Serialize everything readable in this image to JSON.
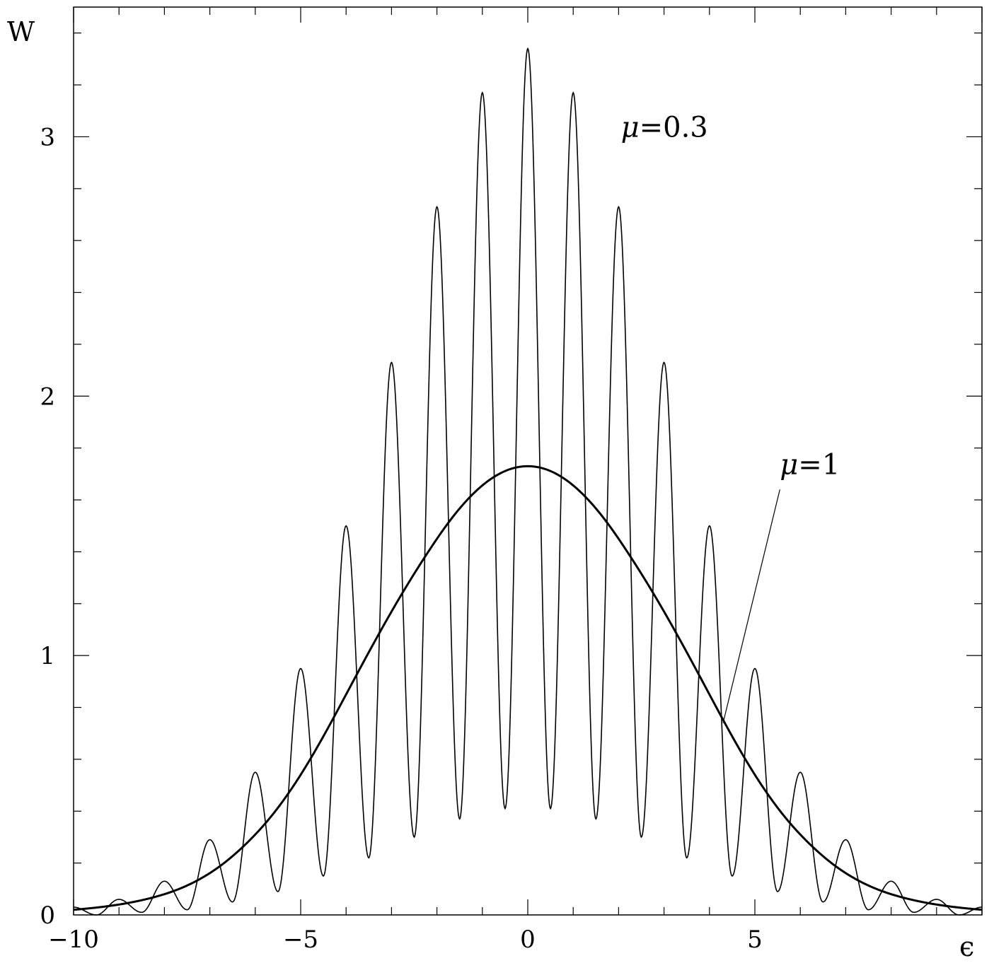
{
  "chart_data": {
    "type": "line",
    "xlabel": "ϵ",
    "ylabel": "W",
    "xlim": [
      -10,
      10
    ],
    "ylim": [
      0,
      3.5
    ],
    "grid": false,
    "x_ticks": [
      -10,
      -5,
      0,
      5
    ],
    "x_tick_labels": [
      "−10",
      "−5",
      "0",
      "5"
    ],
    "y_ticks": [
      0,
      1,
      2,
      3
    ],
    "y_tick_labels": [
      "0",
      "1",
      "2",
      "3"
    ],
    "series": [
      {
        "label": "μ=0.3",
        "peaks": [
          {
            "x": -9,
            "y": 0.06
          },
          {
            "x": -8,
            "y": 0.13
          },
          {
            "x": -7,
            "y": 0.29
          },
          {
            "x": -6,
            "y": 0.55
          },
          {
            "x": -5,
            "y": 0.95
          },
          {
            "x": -4,
            "y": 1.5
          },
          {
            "x": -3,
            "y": 2.13
          },
          {
            "x": -2,
            "y": 2.73
          },
          {
            "x": -1,
            "y": 3.17
          },
          {
            "x": 0,
            "y": 3.34
          },
          {
            "x": 1,
            "y": 3.17
          },
          {
            "x": 2,
            "y": 2.73
          },
          {
            "x": 3,
            "y": 2.13
          },
          {
            "x": 4,
            "y": 1.5
          },
          {
            "x": 5,
            "y": 0.95
          },
          {
            "x": 6,
            "y": 0.55
          },
          {
            "x": 7,
            "y": 0.29
          },
          {
            "x": 8,
            "y": 0.13
          },
          {
            "x": 9,
            "y": 0.06
          }
        ],
        "minima": [
          {
            "x": -9.5,
            "y": 0.0
          },
          {
            "x": -8.5,
            "y": 0.01
          },
          {
            "x": -7.5,
            "y": 0.02
          },
          {
            "x": -6.5,
            "y": 0.05
          },
          {
            "x": -5.5,
            "y": 0.09
          },
          {
            "x": -4.5,
            "y": 0.15
          },
          {
            "x": -3.5,
            "y": 0.22
          },
          {
            "x": -2.5,
            "y": 0.3
          },
          {
            "x": -1.5,
            "y": 0.37
          },
          {
            "x": -0.5,
            "y": 0.41
          },
          {
            "x": 0.5,
            "y": 0.41
          },
          {
            "x": 1.5,
            "y": 0.37
          },
          {
            "x": 2.5,
            "y": 0.3
          },
          {
            "x": 3.5,
            "y": 0.22
          },
          {
            "x": 4.5,
            "y": 0.15
          },
          {
            "x": 5.5,
            "y": 0.09
          },
          {
            "x": 6.5,
            "y": 0.05
          },
          {
            "x": 7.5,
            "y": 0.02
          },
          {
            "x": 8.5,
            "y": 0.01
          },
          {
            "x": 9.5,
            "y": 0.0
          }
        ]
      },
      {
        "label": "μ=1",
        "peak_x": 0,
        "peak_y": 1.73,
        "points": [
          {
            "x": -10,
            "y": 0.02
          },
          {
            "x": -8,
            "y": 0.08
          },
          {
            "x": -6,
            "y": 0.31
          },
          {
            "x": -4,
            "y": 0.85
          },
          {
            "x": -2,
            "y": 1.45
          },
          {
            "x": 0,
            "y": 1.73
          },
          {
            "x": 2,
            "y": 1.45
          },
          {
            "x": 4,
            "y": 0.85
          },
          {
            "x": 6,
            "y": 0.31
          },
          {
            "x": 8,
            "y": 0.08
          },
          {
            "x": 10,
            "y": 0.02
          }
        ]
      }
    ],
    "annotations": [
      {
        "prefix": "μ",
        "text": "=0.3",
        "x": 2.05,
        "y": 3.0
      },
      {
        "prefix": "μ",
        "text": "=1",
        "x": 5.55,
        "y": 1.7,
        "leader_to": {
          "x": 4.3,
          "y": 0.74
        }
      }
    ]
  }
}
